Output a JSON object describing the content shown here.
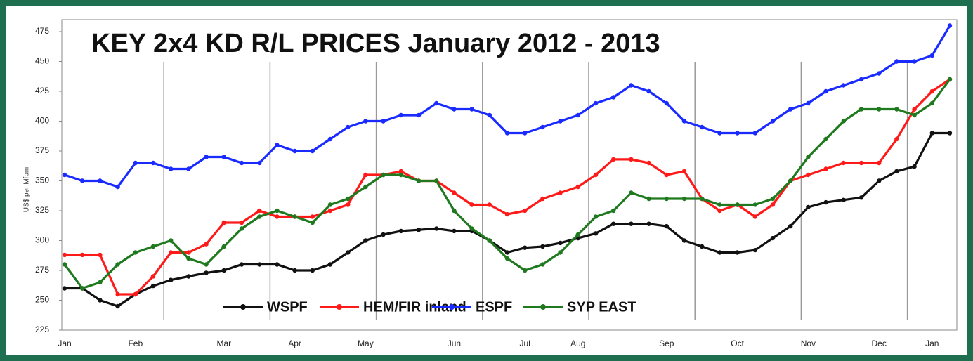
{
  "chart_data": {
    "type": "line",
    "title": "KEY 2x4 KD R/L PRICES January 2012 - 2013",
    "y_label": "US$ per Mfbm",
    "categories": [
      "Jan",
      null,
      null,
      null,
      "Feb",
      null,
      null,
      null,
      null,
      "Mar",
      null,
      null,
      null,
      "Apr",
      null,
      null,
      null,
      "May",
      null,
      null,
      null,
      null,
      "Jun",
      null,
      null,
      null,
      "Jul",
      null,
      null,
      "Aug",
      null,
      null,
      null,
      null,
      "Sep",
      null,
      null,
      null,
      "Oct",
      null,
      null,
      null,
      "Nov",
      null,
      null,
      null,
      "Dec",
      null,
      null,
      "Jan",
      null
    ],
    "series": [
      {
        "name": "WSPF",
        "color": "#111111",
        "values": [
          260,
          260,
          250,
          245,
          255,
          262,
          267,
          270,
          273,
          275,
          280,
          280,
          280,
          275,
          275,
          280,
          290,
          300,
          305,
          308,
          309,
          310,
          308,
          308,
          300,
          290,
          294,
          295,
          298,
          302,
          306,
          314,
          314,
          314,
          312,
          300,
          295,
          290,
          290,
          292,
          302,
          312,
          328,
          332,
          334,
          336,
          350,
          358,
          362,
          390,
          390
        ]
      },
      {
        "name": "HEM/FIR inland",
        "color": "#ff1a1a",
        "values": [
          288,
          288,
          288,
          255,
          255,
          270,
          290,
          290,
          297,
          315,
          315,
          325,
          320,
          320,
          320,
          325,
          330,
          355,
          355,
          358,
          350,
          350,
          340,
          330,
          330,
          322,
          325,
          335,
          340,
          345,
          355,
          368,
          368,
          365,
          355,
          358,
          335,
          325,
          330,
          320,
          330,
          350,
          355,
          360,
          365,
          365,
          365,
          385,
          410,
          425,
          435
        ]
      },
      {
        "name": "ESPF",
        "color": "#1a2bff",
        "values": [
          355,
          350,
          350,
          345,
          365,
          365,
          360,
          360,
          370,
          370,
          365,
          365,
          380,
          375,
          375,
          385,
          395,
          400,
          400,
          405,
          405,
          415,
          410,
          410,
          405,
          390,
          390,
          395,
          400,
          405,
          415,
          420,
          430,
          425,
          415,
          400,
          395,
          390,
          390,
          390,
          400,
          410,
          415,
          425,
          430,
          435,
          440,
          450,
          450,
          455,
          480
        ]
      },
      {
        "name": "SYP EAST",
        "color": "#1f7a1f",
        "values": [
          280,
          260,
          265,
          280,
          290,
          295,
          300,
          285,
          280,
          295,
          310,
          320,
          325,
          320,
          315,
          330,
          335,
          345,
          355,
          355,
          350,
          350,
          325,
          310,
          300,
          285,
          275,
          280,
          290,
          305,
          320,
          325,
          340,
          335,
          335,
          335,
          335,
          330,
          330,
          330,
          335,
          350,
          370,
          385,
          400,
          410,
          410,
          410,
          405,
          415,
          435
        ]
      }
    ],
    "ylim": [
      225,
      485
    ],
    "yticks": [
      225,
      250,
      275,
      300,
      325,
      350,
      375,
      400,
      425,
      450,
      475
    ],
    "grid": true
  }
}
